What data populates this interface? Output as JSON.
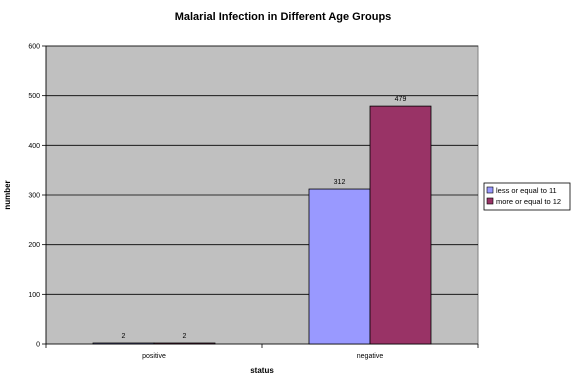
{
  "chart_data": {
    "type": "bar",
    "title": "Malarial Infection in Different Age Groups",
    "xlabel": "status",
    "ylabel": "number",
    "categories": [
      "positive",
      "negative"
    ],
    "series": [
      {
        "name": "less or equal to 11",
        "values": [
          2,
          312
        ],
        "color": "#9999ff"
      },
      {
        "name": "more or equal to 12",
        "values": [
          2,
          479
        ],
        "color": "#993366"
      }
    ],
    "ylim": [
      0,
      600
    ],
    "yticks": [
      0,
      100,
      200,
      300,
      400,
      500,
      600
    ],
    "grid": true,
    "legend_position": "right",
    "plot_background": "#c0c0c0"
  }
}
